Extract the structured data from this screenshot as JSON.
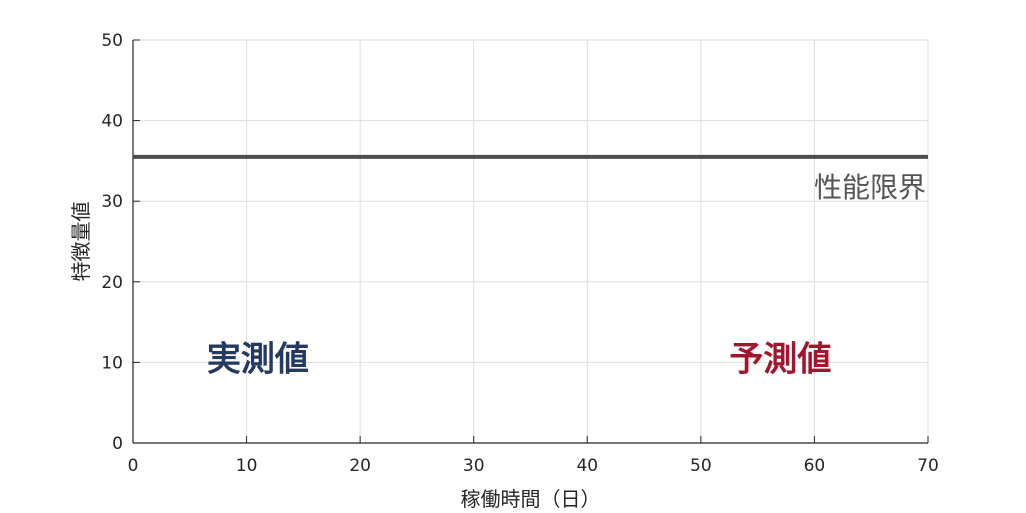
{
  "chart_data": {
    "type": "line",
    "title": "",
    "xlabel": "稼働時間（日）",
    "ylabel": "特徴量値",
    "xlim": [
      0,
      70
    ],
    "ylim": [
      0,
      50
    ],
    "xticks": [
      0,
      10,
      20,
      30,
      40,
      50,
      60,
      70
    ],
    "yticks": [
      0,
      10,
      20,
      30,
      40,
      50
    ],
    "grid": true,
    "reference_lines": [
      {
        "label": "性能限界",
        "y": 35.5,
        "color": "#4d4d4d"
      }
    ],
    "annotations": [
      {
        "text": "実測値",
        "x": 11,
        "y": 10.5,
        "color": "#243a63"
      },
      {
        "text": "予測値",
        "x": 57,
        "y": 10.5,
        "color": "#a1162f"
      }
    ]
  }
}
